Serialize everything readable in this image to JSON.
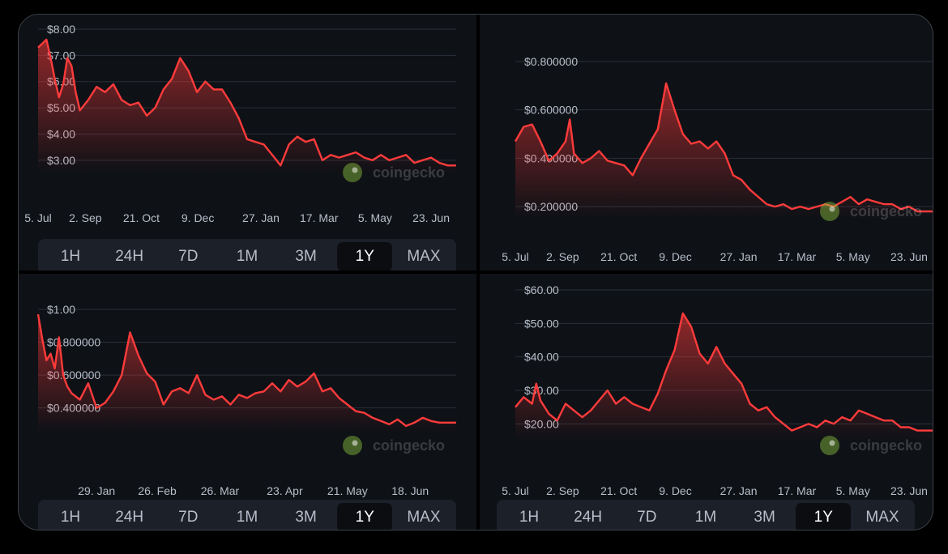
{
  "colors": {
    "line": "#ff3b3b",
    "bg": "#0e1116",
    "grid": "#2a3038",
    "button_bg": "#1b2029",
    "active_bg": "#0b0d11"
  },
  "watermark": "coingecko",
  "range_buttons": [
    "1H",
    "24H",
    "7D",
    "1M",
    "3M",
    "1Y",
    "MAX"
  ],
  "active_range": "1Y",
  "chart_data": [
    {
      "type": "area",
      "ylim": [
        2.5,
        8.0
      ],
      "yticks": [
        {
          "v": 8.0,
          "label": "$8.00"
        },
        {
          "v": 7.0,
          "label": "$7.00"
        },
        {
          "v": 6.0,
          "label": "$6.00"
        },
        {
          "v": 5.0,
          "label": "$5.00"
        },
        {
          "v": 4.0,
          "label": "$4.00"
        },
        {
          "v": 3.0,
          "label": "$3.00"
        }
      ],
      "xticks": [
        {
          "t": 0,
          "label": "5. Jul"
        },
        {
          "t": 0.113,
          "label": "2. Sep"
        },
        {
          "t": 0.247,
          "label": "21. Oct"
        },
        {
          "t": 0.382,
          "label": "9. Dec"
        },
        {
          "t": 0.533,
          "label": "27. Jan"
        },
        {
          "t": 0.672,
          "label": "17. Mar"
        },
        {
          "t": 0.806,
          "label": "5. May"
        },
        {
          "t": 0.94,
          "label": "23. Jun"
        }
      ],
      "x": [
        0,
        0.02,
        0.03,
        0.04,
        0.05,
        0.06,
        0.07,
        0.08,
        0.09,
        0.1,
        0.12,
        0.14,
        0.16,
        0.18,
        0.2,
        0.22,
        0.24,
        0.26,
        0.28,
        0.3,
        0.32,
        0.34,
        0.36,
        0.38,
        0.4,
        0.42,
        0.44,
        0.46,
        0.48,
        0.5,
        0.52,
        0.54,
        0.56,
        0.58,
        0.6,
        0.62,
        0.64,
        0.66,
        0.68,
        0.7,
        0.72,
        0.74,
        0.76,
        0.78,
        0.8,
        0.82,
        0.84,
        0.86,
        0.88,
        0.9,
        0.92,
        0.94,
        0.96,
        0.98,
        1.0
      ],
      "values": [
        7.3,
        7.6,
        6.9,
        6.1,
        5.4,
        5.9,
        6.9,
        6.6,
        5.6,
        4.9,
        5.3,
        5.8,
        5.6,
        5.9,
        5.3,
        5.1,
        5.2,
        4.7,
        5.0,
        5.7,
        6.1,
        6.9,
        6.4,
        5.6,
        6.0,
        5.7,
        5.7,
        5.2,
        4.6,
        3.8,
        3.7,
        3.6,
        3.2,
        2.8,
        3.6,
        3.9,
        3.7,
        3.8,
        3.0,
        3.2,
        3.1,
        3.2,
        3.3,
        3.1,
        3.0,
        3.2,
        3.0,
        3.1,
        3.2,
        2.9,
        3.0,
        3.1,
        2.9,
        2.8,
        2.8
      ]
    },
    {
      "type": "area",
      "ylim": [
        0.15,
        0.82
      ],
      "yticks": [
        {
          "v": 0.8,
          "label": "$0.800000"
        },
        {
          "v": 0.6,
          "label": "$0.600000"
        },
        {
          "v": 0.4,
          "label": "$0.400000"
        },
        {
          "v": 0.2,
          "label": "$0.200000"
        }
      ],
      "xticks": [
        {
          "t": 0,
          "label": "5. Jul"
        },
        {
          "t": 0.113,
          "label": "2. Sep"
        },
        {
          "t": 0.247,
          "label": "21. Oct"
        },
        {
          "t": 0.382,
          "label": "9. Dec"
        },
        {
          "t": 0.533,
          "label": "27. Jan"
        },
        {
          "t": 0.672,
          "label": "17. Mar"
        },
        {
          "t": 0.806,
          "label": "5. May"
        },
        {
          "t": 0.94,
          "label": "23. Jun"
        }
      ],
      "x": [
        0,
        0.02,
        0.04,
        0.06,
        0.08,
        0.1,
        0.12,
        0.13,
        0.14,
        0.16,
        0.18,
        0.2,
        0.22,
        0.24,
        0.26,
        0.28,
        0.3,
        0.32,
        0.34,
        0.36,
        0.38,
        0.4,
        0.42,
        0.44,
        0.46,
        0.48,
        0.5,
        0.52,
        0.54,
        0.56,
        0.58,
        0.6,
        0.62,
        0.64,
        0.66,
        0.68,
        0.7,
        0.72,
        0.74,
        0.76,
        0.78,
        0.8,
        0.82,
        0.84,
        0.86,
        0.88,
        0.9,
        0.92,
        0.94,
        0.96,
        0.98,
        1.0
      ],
      "values": [
        0.47,
        0.53,
        0.54,
        0.47,
        0.39,
        0.42,
        0.47,
        0.56,
        0.42,
        0.38,
        0.4,
        0.43,
        0.39,
        0.38,
        0.37,
        0.33,
        0.4,
        0.46,
        0.52,
        0.71,
        0.6,
        0.5,
        0.46,
        0.47,
        0.44,
        0.47,
        0.42,
        0.33,
        0.31,
        0.27,
        0.24,
        0.21,
        0.2,
        0.21,
        0.19,
        0.2,
        0.19,
        0.2,
        0.21,
        0.2,
        0.22,
        0.24,
        0.21,
        0.23,
        0.22,
        0.21,
        0.21,
        0.19,
        0.2,
        0.18,
        0.18,
        0.18
      ]
    },
    {
      "type": "area",
      "ylim": [
        0.25,
        1.0
      ],
      "yticks": [
        {
          "v": 1.0,
          "label": "$1.00"
        },
        {
          "v": 0.8,
          "label": "$0.800000"
        },
        {
          "v": 0.6,
          "label": "$0.600000"
        },
        {
          "v": 0.4,
          "label": "$0.400000"
        }
      ],
      "xticks": [
        {
          "t": 0.14,
          "label": "29. Jan"
        },
        {
          "t": 0.285,
          "label": "26. Feb"
        },
        {
          "t": 0.435,
          "label": "26. Mar"
        },
        {
          "t": 0.59,
          "label": "23. Apr"
        },
        {
          "t": 0.74,
          "label": "21. May"
        },
        {
          "t": 0.89,
          "label": "18. Jun"
        }
      ],
      "x": [
        0,
        0.01,
        0.02,
        0.03,
        0.04,
        0.05,
        0.06,
        0.07,
        0.08,
        0.1,
        0.12,
        0.14,
        0.16,
        0.18,
        0.2,
        0.22,
        0.24,
        0.26,
        0.28,
        0.3,
        0.32,
        0.34,
        0.36,
        0.38,
        0.4,
        0.42,
        0.44,
        0.46,
        0.48,
        0.5,
        0.52,
        0.54,
        0.56,
        0.58,
        0.6,
        0.62,
        0.64,
        0.66,
        0.68,
        0.7,
        0.72,
        0.74,
        0.76,
        0.78,
        0.8,
        0.82,
        0.84,
        0.86,
        0.88,
        0.9,
        0.92,
        0.94,
        0.96,
        0.98,
        1.0
      ],
      "values": [
        0.97,
        0.82,
        0.69,
        0.73,
        0.64,
        0.83,
        0.6,
        0.53,
        0.49,
        0.45,
        0.55,
        0.4,
        0.43,
        0.5,
        0.6,
        0.86,
        0.72,
        0.61,
        0.56,
        0.42,
        0.5,
        0.52,
        0.49,
        0.6,
        0.48,
        0.45,
        0.47,
        0.42,
        0.48,
        0.46,
        0.49,
        0.5,
        0.55,
        0.5,
        0.57,
        0.53,
        0.56,
        0.61,
        0.5,
        0.52,
        0.46,
        0.42,
        0.38,
        0.37,
        0.34,
        0.32,
        0.3,
        0.33,
        0.29,
        0.31,
        0.34,
        0.32,
        0.31,
        0.31,
        0.31
      ]
    },
    {
      "type": "area",
      "ylim": [
        15,
        60
      ],
      "yticks": [
        {
          "v": 60,
          "label": "$60.00"
        },
        {
          "v": 50,
          "label": "$50.00"
        },
        {
          "v": 40,
          "label": "$40.00"
        },
        {
          "v": 30,
          "label": "$30.00"
        },
        {
          "v": 20,
          "label": "$20.00"
        }
      ],
      "xticks": [
        {
          "t": 0,
          "label": "5. Jul"
        },
        {
          "t": 0.113,
          "label": "2. Sep"
        },
        {
          "t": 0.247,
          "label": "21. Oct"
        },
        {
          "t": 0.382,
          "label": "9. Dec"
        },
        {
          "t": 0.533,
          "label": "27. Jan"
        },
        {
          "t": 0.672,
          "label": "17. Mar"
        },
        {
          "t": 0.806,
          "label": "5. May"
        },
        {
          "t": 0.94,
          "label": "23. Jun"
        }
      ],
      "x": [
        0,
        0.02,
        0.04,
        0.05,
        0.06,
        0.08,
        0.1,
        0.12,
        0.14,
        0.16,
        0.18,
        0.2,
        0.22,
        0.24,
        0.26,
        0.28,
        0.3,
        0.32,
        0.34,
        0.36,
        0.38,
        0.4,
        0.42,
        0.44,
        0.46,
        0.48,
        0.5,
        0.52,
        0.54,
        0.56,
        0.58,
        0.6,
        0.62,
        0.64,
        0.66,
        0.68,
        0.7,
        0.72,
        0.74,
        0.76,
        0.78,
        0.8,
        0.82,
        0.84,
        0.86,
        0.88,
        0.9,
        0.92,
        0.94,
        0.96,
        0.98,
        1.0
      ],
      "values": [
        25,
        28,
        26,
        32,
        27,
        23,
        21,
        26,
        24,
        22,
        24,
        27,
        30,
        26,
        28,
        26,
        25,
        24,
        29,
        36,
        42,
        53,
        49,
        41,
        38,
        43,
        38,
        35,
        32,
        26,
        24,
        25,
        22,
        20,
        18,
        19,
        20,
        19,
        21,
        20,
        22,
        21,
        24,
        23,
        22,
        21,
        21,
        19,
        19,
        18,
        18,
        18
      ]
    }
  ]
}
